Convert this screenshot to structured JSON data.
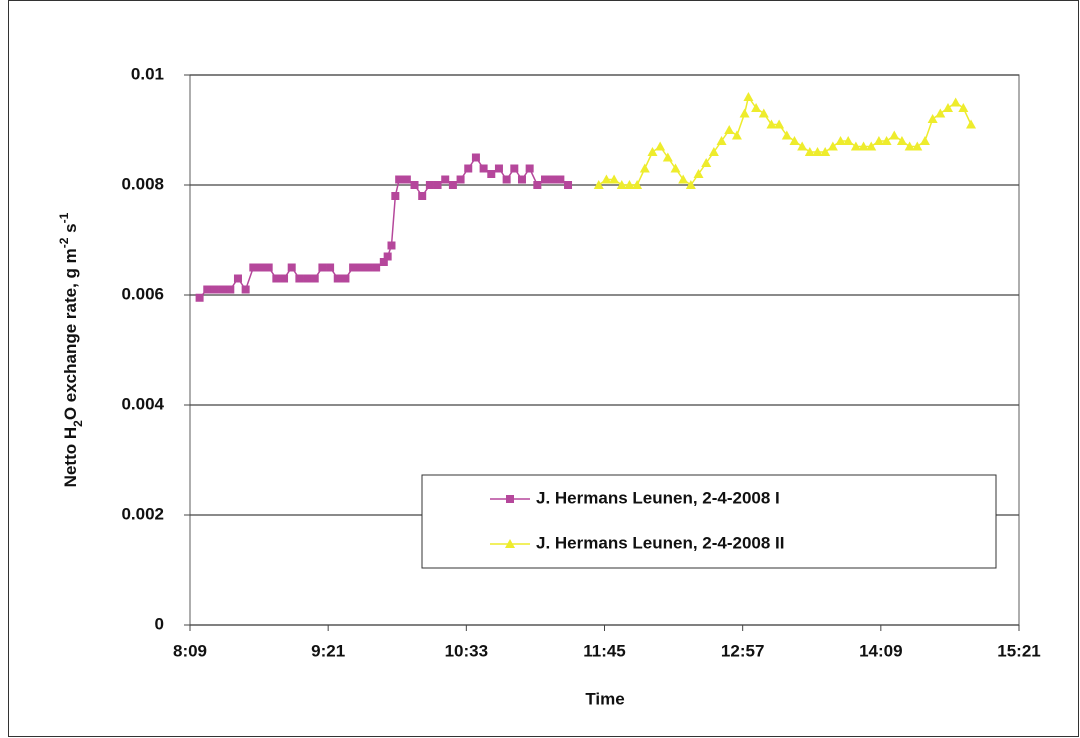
{
  "chart_data": {
    "type": "line",
    "y_label": [
      "Netto H",
      "2",
      "O exchange rate, g m",
      "-2",
      " s",
      "-1"
    ],
    "x_label": "Time",
    "xlim": [
      489,
      921
    ],
    "xticks": [
      {
        "value": 489,
        "label": "8:09"
      },
      {
        "value": 561,
        "label": "9:21"
      },
      {
        "value": 633,
        "label": "10:33"
      },
      {
        "value": 705,
        "label": "11:45"
      },
      {
        "value": 777,
        "label": "12:57"
      },
      {
        "value": 849,
        "label": "14:09"
      },
      {
        "value": 921,
        "label": "15:21"
      }
    ],
    "ylim": [
      0,
      0.01
    ],
    "yticks": [
      0,
      0.002,
      0.004,
      0.006,
      0.008,
      0.01
    ],
    "grid": true,
    "series": [
      {
        "name": "J. Hermans Leunen, 2-4-2008 I",
        "color": "#b5479b",
        "marker": "square",
        "x": [
          494,
          498,
          502,
          506,
          510,
          514,
          518,
          522,
          526,
          530,
          534,
          538,
          542,
          546,
          550,
          554,
          558,
          562,
          566,
          570,
          574,
          578,
          582,
          586,
          590,
          592,
          594,
          596,
          598,
          602,
          606,
          610,
          614,
          618,
          622,
          626,
          630,
          634,
          638,
          642,
          646,
          650,
          654,
          658,
          662,
          666,
          670,
          674,
          678,
          682,
          686
        ],
        "values": [
          0.00595,
          0.0061,
          0.0061,
          0.0061,
          0.0061,
          0.0063,
          0.0061,
          0.0065,
          0.0065,
          0.0065,
          0.0063,
          0.0063,
          0.0065,
          0.0063,
          0.0063,
          0.0063,
          0.0065,
          0.0065,
          0.0063,
          0.0063,
          0.0065,
          0.0065,
          0.0065,
          0.0065,
          0.0066,
          0.0067,
          0.0069,
          0.0078,
          0.0081,
          0.0081,
          0.008,
          0.0078,
          0.008,
          0.008,
          0.0081,
          0.008,
          0.0081,
          0.0083,
          0.0085,
          0.0083,
          0.0082,
          0.0083,
          0.0081,
          0.0083,
          0.0081,
          0.0083,
          0.008,
          0.0081,
          0.0081,
          0.0081,
          0.008
        ]
      },
      {
        "name": "J. Hermans Leunen, 2-4-2008 II",
        "color": "#eeec2c",
        "marker": "triangle",
        "x": [
          702,
          706,
          710,
          714,
          718,
          722,
          726,
          730,
          734,
          738,
          742,
          746,
          750,
          754,
          758,
          762,
          766,
          770,
          774,
          778,
          780,
          784,
          788,
          792,
          796,
          800,
          804,
          808,
          812,
          816,
          820,
          824,
          828,
          832,
          836,
          840,
          844,
          848,
          852,
          856,
          860,
          864,
          868,
          872,
          876,
          880,
          884,
          888,
          892,
          896
        ],
        "values": [
          0.008,
          0.0081,
          0.0081,
          0.008,
          0.008,
          0.008,
          0.0083,
          0.0086,
          0.0087,
          0.0085,
          0.0083,
          0.0081,
          0.008,
          0.0082,
          0.0084,
          0.0086,
          0.0088,
          0.009,
          0.0089,
          0.0093,
          0.0096,
          0.0094,
          0.0093,
          0.0091,
          0.0091,
          0.0089,
          0.0088,
          0.0087,
          0.0086,
          0.0086,
          0.0086,
          0.0087,
          0.0088,
          0.0088,
          0.0087,
          0.0087,
          0.0087,
          0.0088,
          0.0088,
          0.0089,
          0.0088,
          0.0087,
          0.0087,
          0.0088,
          0.0092,
          0.0093,
          0.0094,
          0.0095,
          0.0094,
          0.0091
        ]
      }
    ]
  }
}
